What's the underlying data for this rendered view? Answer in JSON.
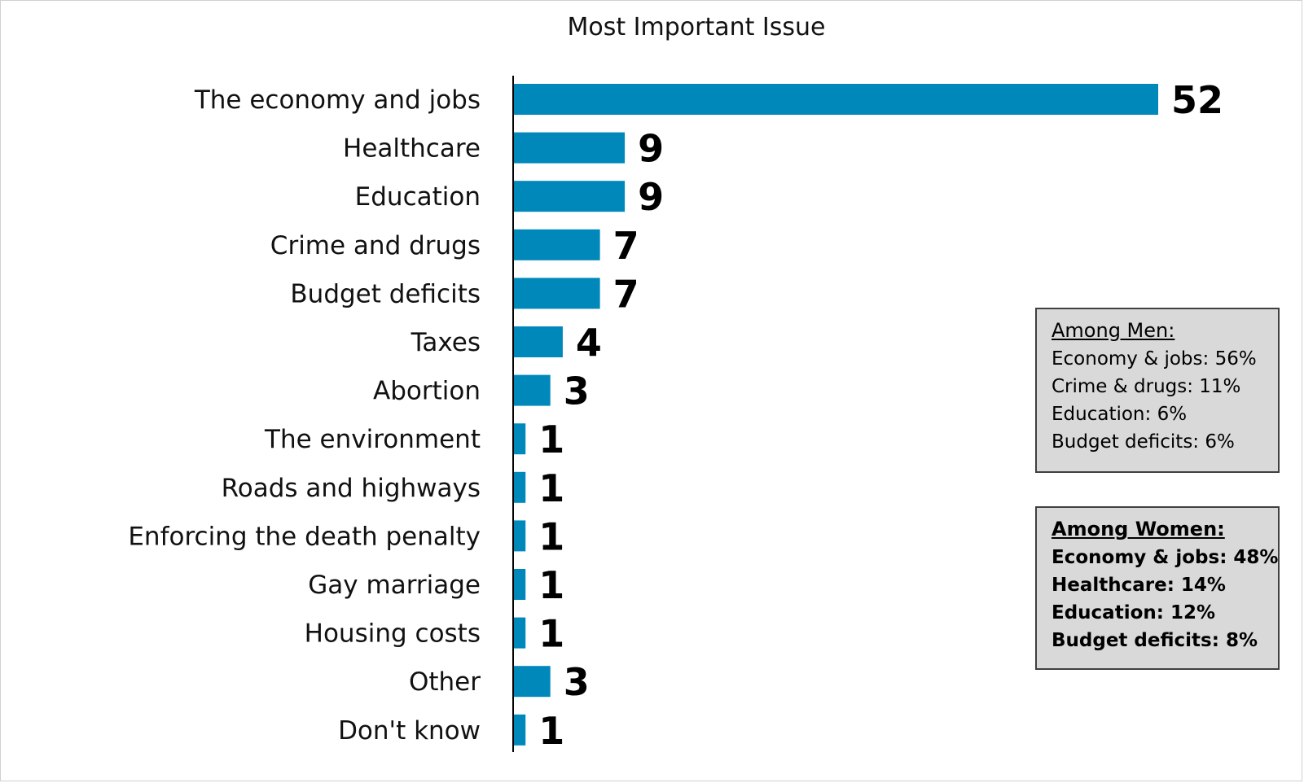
{
  "chart_data": {
    "type": "bar",
    "orientation": "horizontal",
    "title": "Most Important Issue",
    "categories": [
      "The economy and jobs",
      "Healthcare",
      "Education",
      "Crime and drugs",
      "Budget deficits",
      "Taxes",
      "Abortion",
      "The environment",
      "Roads and highways",
      "Enforcing the death penalty",
      "Gay marriage",
      "Housing costs",
      "Other",
      "Don't know"
    ],
    "values": [
      52,
      9,
      9,
      7,
      7,
      4,
      3,
      1,
      1,
      1,
      1,
      1,
      3,
      1
    ],
    "data_labels": [
      "52",
      "9",
      "9",
      "7",
      "7",
      "4",
      "3",
      "1",
      "1",
      "1",
      "1",
      "1",
      "3",
      "1"
    ],
    "xlim": [
      0,
      52
    ],
    "grid": false,
    "legend": "none",
    "bar_color": "#0088bb"
  },
  "callouts": {
    "men": {
      "heading": "Among Men:",
      "lines": [
        "Economy & jobs: 56%",
        "Crime & drugs: 11%",
        "Education: 6%",
        "Budget deficits: 6%"
      ]
    },
    "women": {
      "heading": "Among Women:",
      "lines": [
        "Economy & jobs: 48%",
        "Healthcare: 14%",
        "Education: 12%",
        "Budget deficits: 8%"
      ]
    }
  }
}
